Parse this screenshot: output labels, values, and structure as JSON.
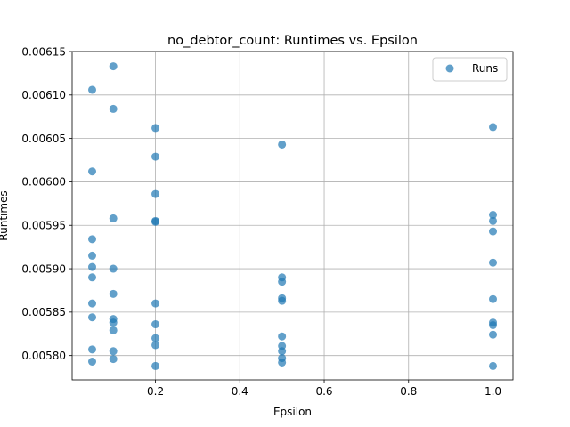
{
  "chart_data": {
    "type": "scatter",
    "title": "no_debtor_count: Runtimes vs. Epsilon",
    "xlabel": "Epsilon",
    "ylabel": "Runtimes",
    "xlim": [
      0.0025,
      1.0475
    ],
    "ylim": [
      0.005772,
      0.00615
    ],
    "x_ticks": [
      0.2,
      0.4,
      0.6,
      0.8,
      1.0
    ],
    "x_tick_labels": [
      "0.2",
      "0.4",
      "0.6",
      "0.8",
      "1.0"
    ],
    "y_ticks": [
      0.0058,
      0.00585,
      0.0059,
      0.00595,
      0.006,
      0.00605,
      0.0061,
      0.00615
    ],
    "y_tick_labels": [
      "0.00580",
      "0.00585",
      "0.00590",
      "0.00595",
      "0.00600",
      "0.00605",
      "0.00610",
      "0.00615"
    ],
    "grid": true,
    "legend_position": "top-right",
    "marker_color": "#1f77b4",
    "series": [
      {
        "name": "Runs",
        "points": [
          {
            "x": 0.05,
            "y": 0.006106
          },
          {
            "x": 0.05,
            "y": 0.006012
          },
          {
            "x": 0.05,
            "y": 0.005934
          },
          {
            "x": 0.05,
            "y": 0.005915
          },
          {
            "x": 0.05,
            "y": 0.005902
          },
          {
            "x": 0.05,
            "y": 0.00589
          },
          {
            "x": 0.05,
            "y": 0.00586
          },
          {
            "x": 0.05,
            "y": 0.005844
          },
          {
            "x": 0.05,
            "y": 0.005807
          },
          {
            "x": 0.05,
            "y": 0.005793
          },
          {
            "x": 0.1,
            "y": 0.006133
          },
          {
            "x": 0.1,
            "y": 0.006084
          },
          {
            "x": 0.1,
            "y": 0.005958
          },
          {
            "x": 0.1,
            "y": 0.0059
          },
          {
            "x": 0.1,
            "y": 0.005871
          },
          {
            "x": 0.1,
            "y": 0.005842
          },
          {
            "x": 0.1,
            "y": 0.005838
          },
          {
            "x": 0.1,
            "y": 0.005829
          },
          {
            "x": 0.1,
            "y": 0.005805
          },
          {
            "x": 0.1,
            "y": 0.005796
          },
          {
            "x": 0.2,
            "y": 0.006062
          },
          {
            "x": 0.2,
            "y": 0.006029
          },
          {
            "x": 0.2,
            "y": 0.005986
          },
          {
            "x": 0.2,
            "y": 0.005955
          },
          {
            "x": 0.2,
            "y": 0.005954
          },
          {
            "x": 0.2,
            "y": 0.00586
          },
          {
            "x": 0.2,
            "y": 0.005836
          },
          {
            "x": 0.2,
            "y": 0.00582
          },
          {
            "x": 0.2,
            "y": 0.005812
          },
          {
            "x": 0.2,
            "y": 0.005788
          },
          {
            "x": 0.5,
            "y": 0.006043
          },
          {
            "x": 0.5,
            "y": 0.00589
          },
          {
            "x": 0.5,
            "y": 0.005885
          },
          {
            "x": 0.5,
            "y": 0.005866
          },
          {
            "x": 0.5,
            "y": 0.005863
          },
          {
            "x": 0.5,
            "y": 0.005822
          },
          {
            "x": 0.5,
            "y": 0.005811
          },
          {
            "x": 0.5,
            "y": 0.005805
          },
          {
            "x": 0.5,
            "y": 0.005797
          },
          {
            "x": 0.5,
            "y": 0.005792
          },
          {
            "x": 1.0,
            "y": 0.006063
          },
          {
            "x": 1.0,
            "y": 0.005962
          },
          {
            "x": 1.0,
            "y": 0.005955
          },
          {
            "x": 1.0,
            "y": 0.005943
          },
          {
            "x": 1.0,
            "y": 0.005907
          },
          {
            "x": 1.0,
            "y": 0.005865
          },
          {
            "x": 1.0,
            "y": 0.005838
          },
          {
            "x": 1.0,
            "y": 0.005835
          },
          {
            "x": 1.0,
            "y": 0.005824
          },
          {
            "x": 1.0,
            "y": 0.005788
          }
        ]
      }
    ]
  }
}
